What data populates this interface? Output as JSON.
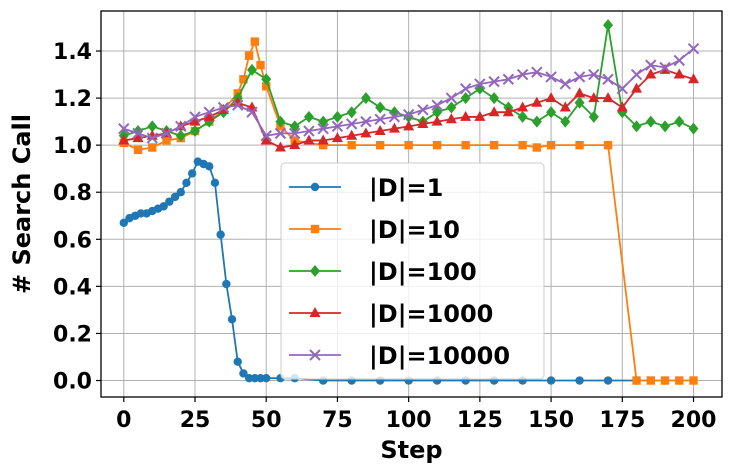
{
  "chart_data": {
    "type": "line",
    "title": "",
    "xlabel": "Step",
    "ylabel": "# Search Call",
    "xlim": [
      -8,
      210
    ],
    "ylim": [
      -0.07,
      1.57
    ],
    "xticks": [
      0,
      25,
      50,
      75,
      100,
      125,
      150,
      175,
      200
    ],
    "yticks": [
      0.0,
      0.2,
      0.4,
      0.6,
      0.8,
      1.0,
      1.2,
      1.4
    ],
    "grid": true,
    "legend_position": "lower-center",
    "series": [
      {
        "name": "|D|=1",
        "color": "#1f77b4",
        "marker": "circle",
        "x": [
          0,
          2,
          4,
          6,
          8,
          10,
          12,
          14,
          16,
          18,
          20,
          22,
          24,
          26,
          28,
          30,
          32,
          34,
          36,
          38,
          40,
          42,
          44,
          46,
          48,
          50,
          55,
          60,
          70,
          80,
          90,
          100,
          110,
          120,
          130,
          140,
          150,
          160,
          170,
          180
        ],
        "values": [
          0.67,
          0.69,
          0.7,
          0.71,
          0.71,
          0.72,
          0.73,
          0.74,
          0.76,
          0.78,
          0.8,
          0.84,
          0.88,
          0.93,
          0.92,
          0.91,
          0.84,
          0.62,
          0.41,
          0.26,
          0.08,
          0.03,
          0.01,
          0.01,
          0.01,
          0.01,
          0.01,
          0.01,
          0.0,
          0.0,
          0.0,
          0.0,
          0.0,
          0.0,
          0.0,
          0.0,
          0.0,
          0.0,
          0.0,
          0.0
        ]
      },
      {
        "name": "|D|=10",
        "color": "#ff7f0e",
        "marker": "square",
        "x": [
          0,
          5,
          10,
          15,
          20,
          25,
          30,
          35,
          40,
          42,
          44,
          46,
          48,
          50,
          55,
          60,
          70,
          80,
          90,
          100,
          110,
          120,
          130,
          140,
          145,
          150,
          160,
          170,
          180,
          185,
          190,
          195,
          200
        ],
        "values": [
          1.01,
          0.98,
          0.99,
          1.02,
          1.03,
          1.06,
          1.1,
          1.15,
          1.22,
          1.28,
          1.38,
          1.44,
          1.34,
          1.25,
          1.08,
          1.02,
          1.0,
          1.0,
          1.0,
          1.0,
          1.0,
          1.0,
          1.0,
          1.0,
          0.99,
          1.0,
          1.0,
          1.0,
          0.0,
          0.0,
          0.0,
          0.0,
          0.0
        ]
      },
      {
        "name": "|D|=100",
        "color": "#2ca02c",
        "marker": "diamond",
        "x": [
          0,
          5,
          10,
          15,
          20,
          25,
          30,
          35,
          40,
          45,
          50,
          55,
          60,
          65,
          70,
          75,
          80,
          85,
          90,
          95,
          100,
          105,
          110,
          115,
          120,
          125,
          130,
          135,
          140,
          145,
          150,
          155,
          160,
          165,
          170,
          175,
          180,
          185,
          190,
          195,
          200
        ],
        "values": [
          1.04,
          1.06,
          1.08,
          1.06,
          1.04,
          1.06,
          1.1,
          1.14,
          1.2,
          1.32,
          1.28,
          1.1,
          1.08,
          1.12,
          1.1,
          1.12,
          1.14,
          1.2,
          1.16,
          1.14,
          1.12,
          1.1,
          1.14,
          1.16,
          1.2,
          1.24,
          1.2,
          1.16,
          1.12,
          1.1,
          1.14,
          1.1,
          1.18,
          1.12,
          1.51,
          1.14,
          1.08,
          1.1,
          1.08,
          1.1,
          1.07
        ]
      },
      {
        "name": "|D|=1000",
        "color": "#d62728",
        "marker": "triangle",
        "x": [
          0,
          5,
          10,
          15,
          20,
          25,
          30,
          35,
          40,
          45,
          50,
          55,
          60,
          65,
          70,
          75,
          80,
          85,
          90,
          95,
          100,
          105,
          110,
          115,
          120,
          125,
          130,
          135,
          140,
          145,
          150,
          155,
          160,
          165,
          170,
          175,
          180,
          185,
          190,
          195,
          200
        ],
        "values": [
          1.02,
          1.03,
          1.04,
          1.05,
          1.08,
          1.1,
          1.12,
          1.15,
          1.18,
          1.16,
          1.02,
          0.99,
          1.0,
          1.02,
          1.02,
          1.03,
          1.04,
          1.05,
          1.06,
          1.07,
          1.08,
          1.09,
          1.1,
          1.11,
          1.12,
          1.12,
          1.14,
          1.14,
          1.16,
          1.18,
          1.2,
          1.16,
          1.22,
          1.2,
          1.2,
          1.16,
          1.24,
          1.3,
          1.32,
          1.3,
          1.28
        ]
      },
      {
        "name": "|D|=10000",
        "color": "#9467bd",
        "marker": "x",
        "x": [
          0,
          5,
          10,
          15,
          20,
          25,
          30,
          35,
          40,
          45,
          50,
          55,
          60,
          65,
          70,
          75,
          80,
          85,
          90,
          95,
          100,
          105,
          110,
          115,
          120,
          125,
          130,
          135,
          140,
          145,
          150,
          155,
          160,
          165,
          170,
          175,
          180,
          185,
          190,
          195,
          200
        ],
        "values": [
          1.07,
          1.05,
          1.03,
          1.05,
          1.08,
          1.12,
          1.14,
          1.16,
          1.17,
          1.14,
          1.04,
          1.05,
          1.05,
          1.06,
          1.07,
          1.08,
          1.09,
          1.1,
          1.11,
          1.12,
          1.13,
          1.15,
          1.17,
          1.2,
          1.24,
          1.26,
          1.27,
          1.28,
          1.3,
          1.31,
          1.29,
          1.26,
          1.29,
          1.3,
          1.28,
          1.24,
          1.3,
          1.34,
          1.33,
          1.36,
          1.41
        ]
      }
    ]
  }
}
